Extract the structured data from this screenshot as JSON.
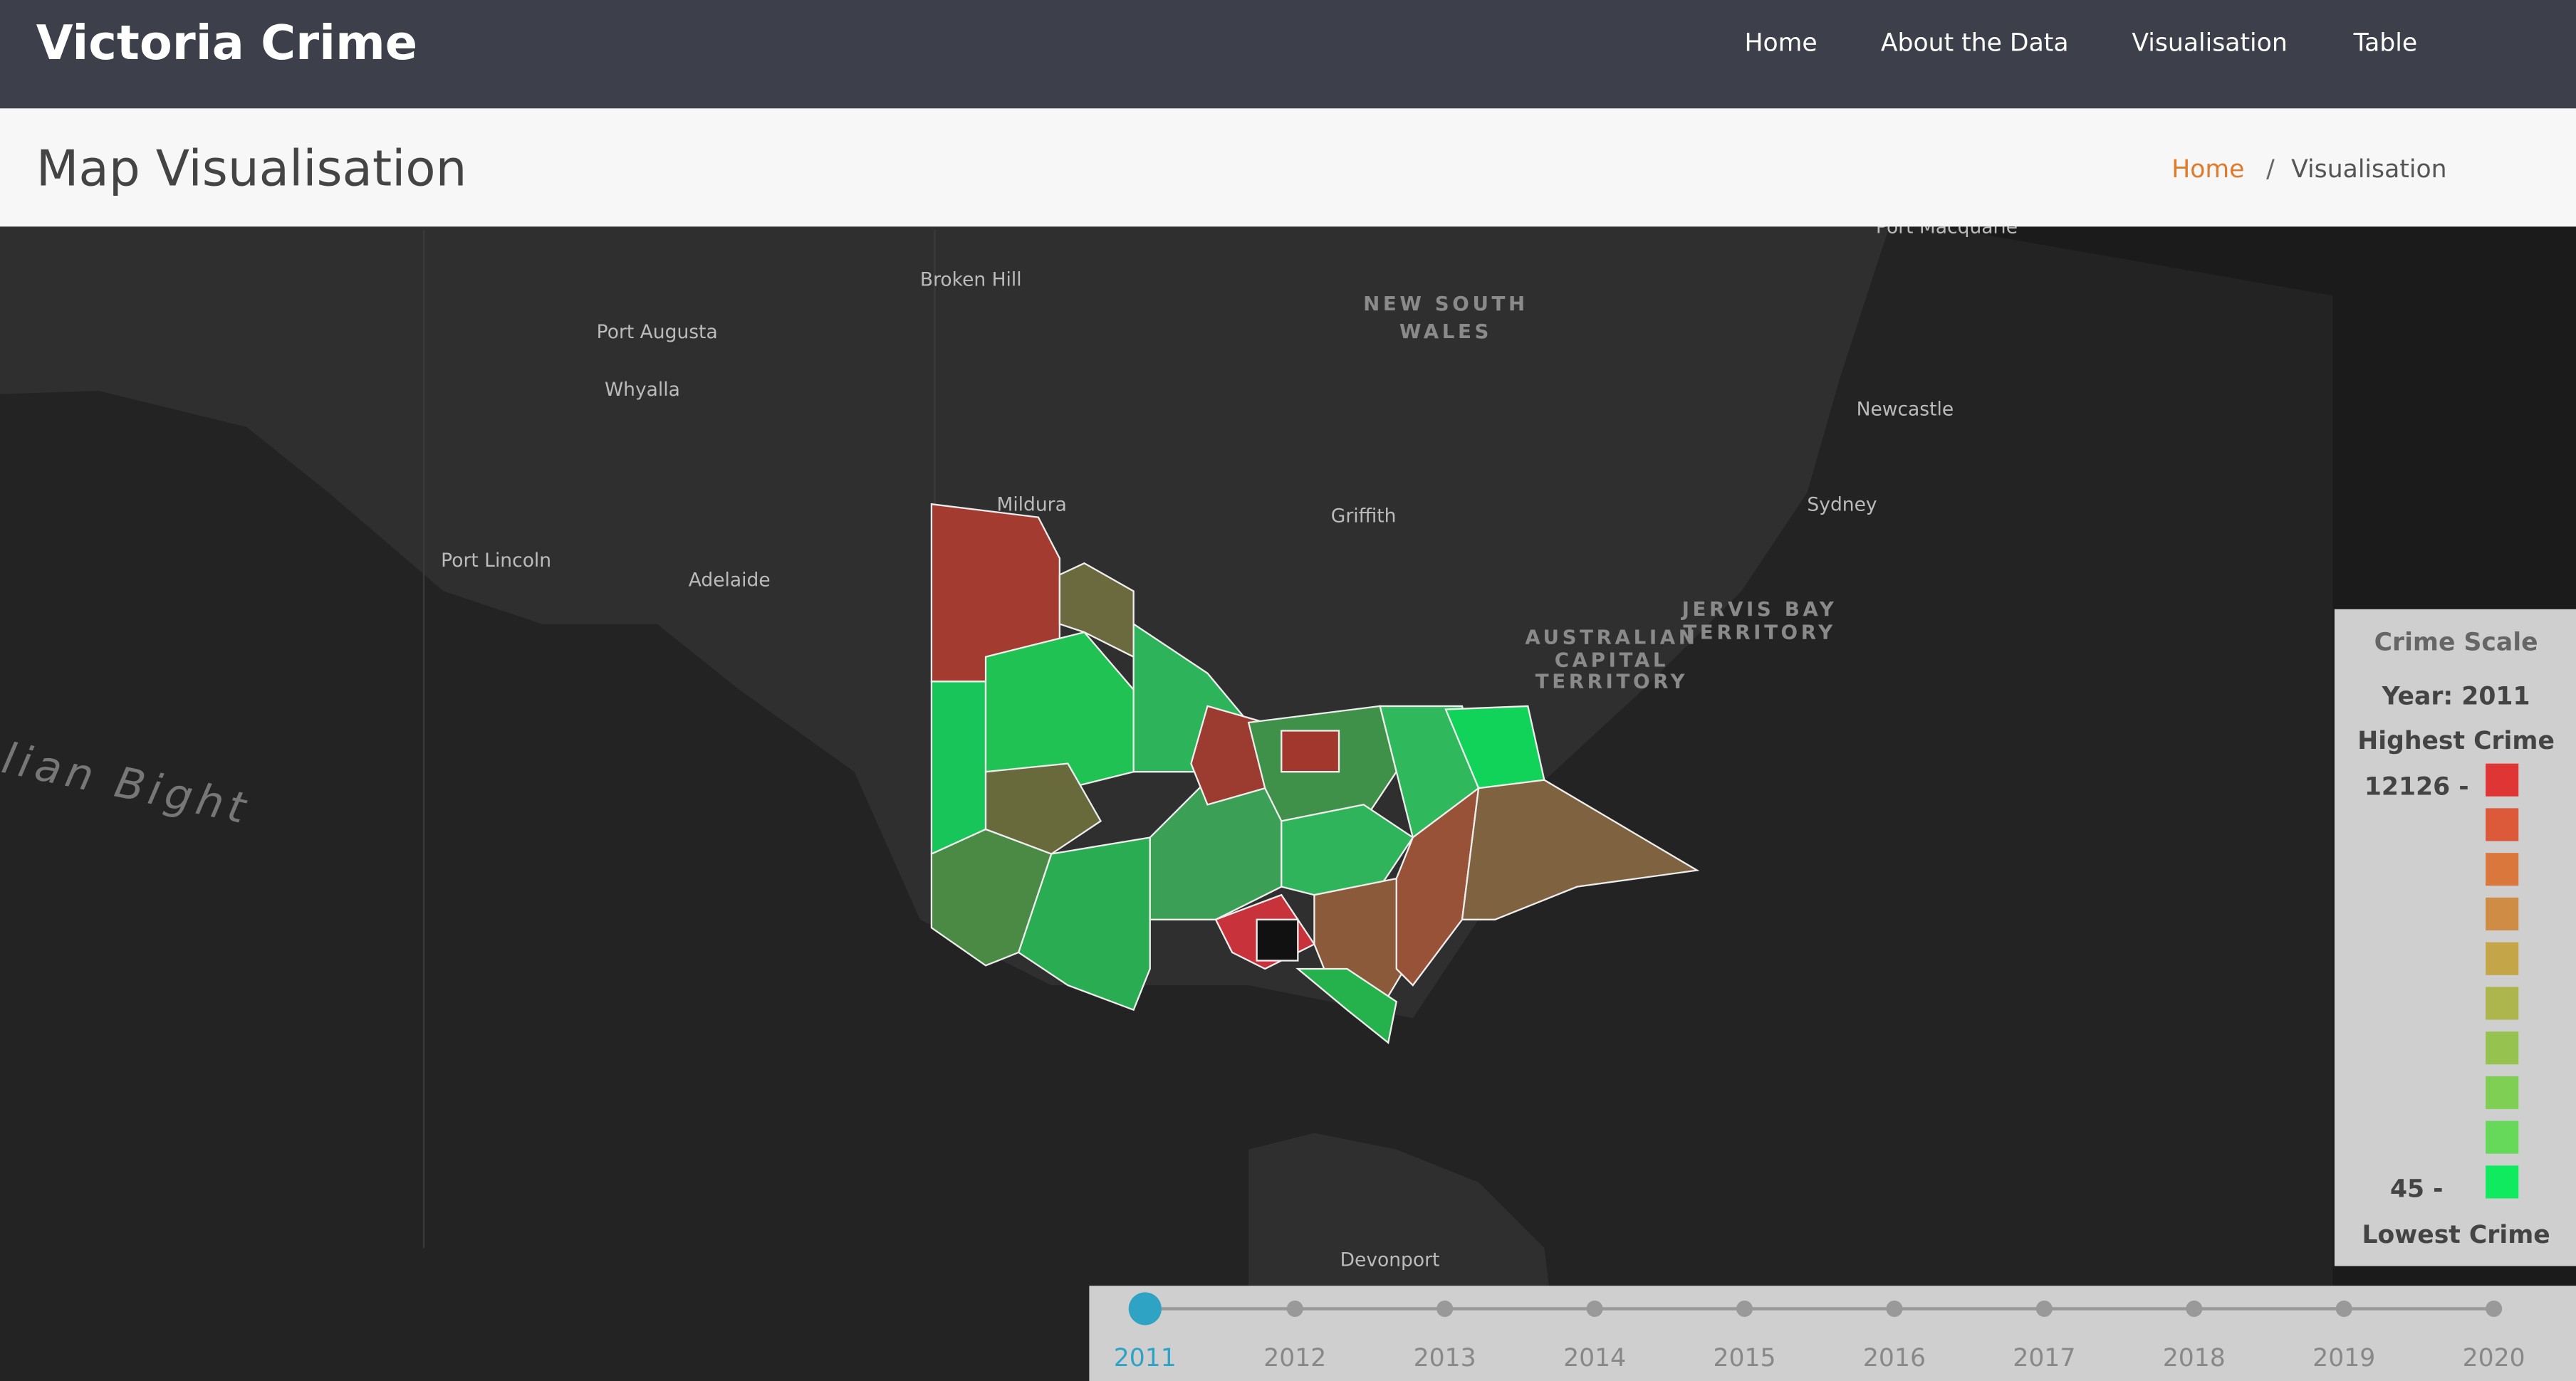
{
  "header": {
    "brand": "Victoria Crime",
    "nav": [
      "Home",
      "About the Data",
      "Visualisation",
      "Table"
    ]
  },
  "subheader": {
    "title": "Map Visualisation",
    "breadcrumb": [
      "Home",
      "/",
      "Visualisation"
    ]
  },
  "map": {
    "labels": [
      "Broken Hill",
      "Port Augusta",
      "Whyalla",
      "Mildura",
      "Griffith",
      "Newcastle",
      "Sydney",
      "Port Lincoln",
      "Adelaide",
      "Devonport",
      "Port Macquarie"
    ],
    "regions": [
      "NEW SOUTH",
      "WALES",
      "AUSTRALIAN",
      "CAPITAL",
      "TERRITORY",
      "JERVIS BAY",
      "TERRITORY"
    ],
    "sea": "lian Bight"
  },
  "legend": {
    "title": "Crime Scale",
    "year": "Year: 2011",
    "top_label": "Highest Crime",
    "max": "12126 -",
    "min": "45 -",
    "bottom_label": "Lowest Crime",
    "colors": [
      "#e03535",
      "#dc5a3a",
      "#d9773d",
      "#cf8c44",
      "#c4a648",
      "#adb64c",
      "#96c24f",
      "#7fcf55",
      "#66d85a",
      "#10ea5f"
    ]
  },
  "timeline": {
    "years": [
      "2011",
      "2012",
      "2013",
      "2014",
      "2015",
      "2016",
      "2017",
      "2018",
      "2019",
      "2020"
    ]
  }
}
